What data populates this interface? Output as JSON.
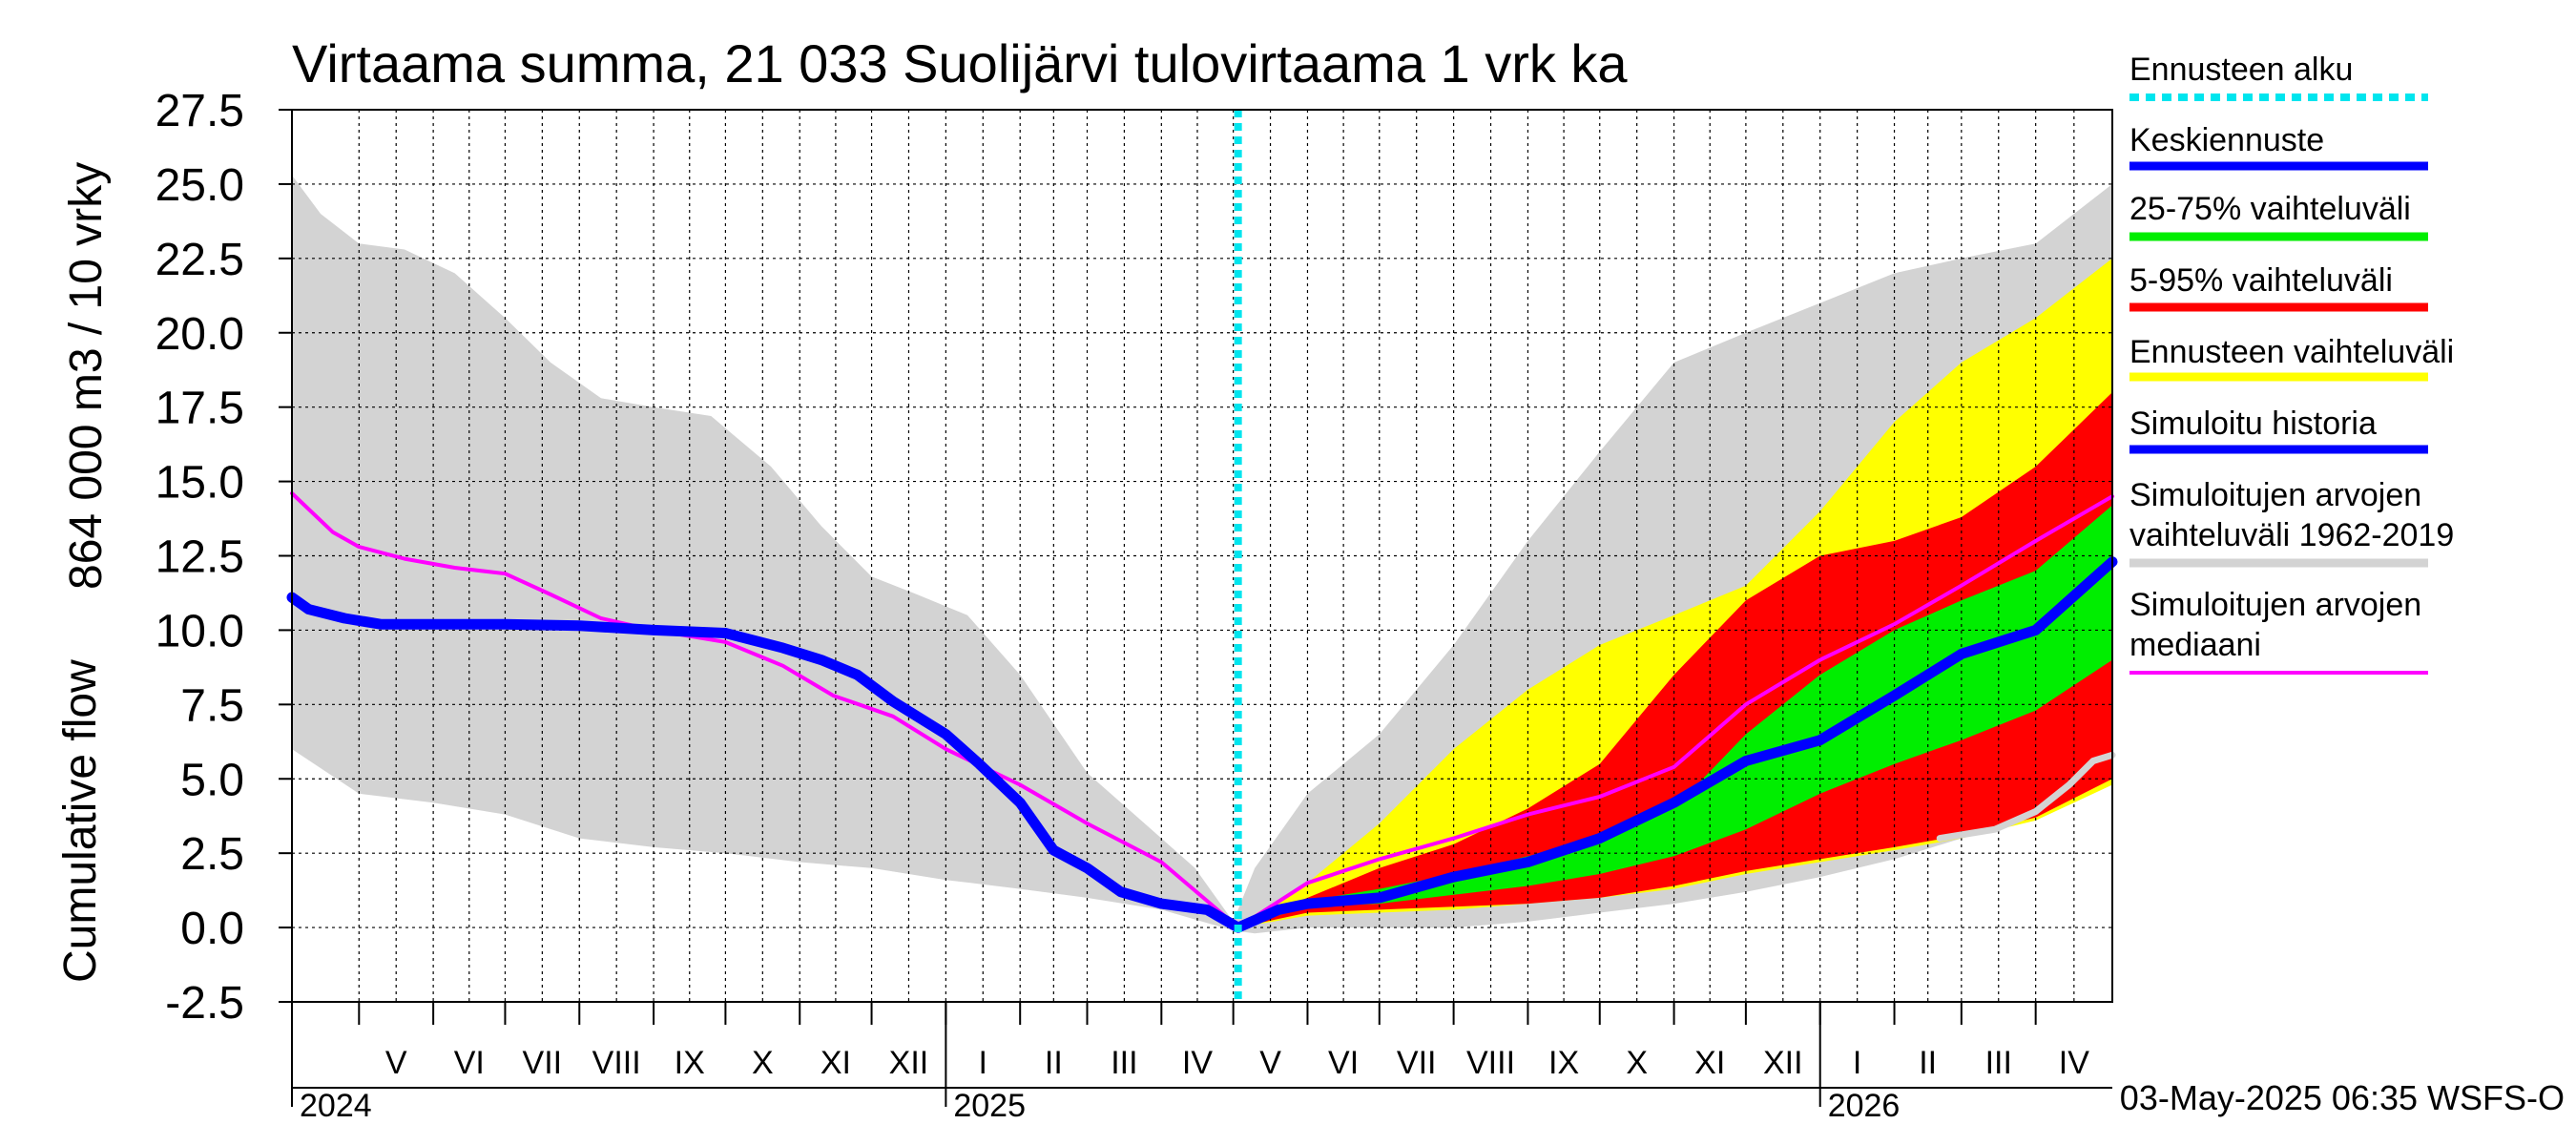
{
  "chart_data": {
    "type": "area",
    "title": "Virtaama summa, 21 033 Suolijärvi tulovirtaama 1 vrk ka",
    "ylabel_top": "864 000 m3 / 10 vrky",
    "ylabel_bottom": "Cumulative flow",
    "ylim": [
      -2.5,
      27.5
    ],
    "yticks": [
      "27.5",
      "25.0",
      "22.5",
      "20.0",
      "17.5",
      "15.0",
      "12.5",
      "10.0",
      "7.5",
      "5.0",
      "2.5",
      "0.0",
      "-2.5"
    ],
    "x_start": "2024-04-03",
    "x_end": "2026-05-03",
    "forecast_start": "2025-05-03",
    "grid": true,
    "legend_position": "right",
    "months": [
      {
        "label": "V",
        "date": "2024-05-01"
      },
      {
        "label": "VI",
        "date": "2024-06-01"
      },
      {
        "label": "VII",
        "date": "2024-07-01"
      },
      {
        "label": "VIII",
        "date": "2024-08-01"
      },
      {
        "label": "IX",
        "date": "2024-09-01"
      },
      {
        "label": "X",
        "date": "2024-10-01"
      },
      {
        "label": "XI",
        "date": "2024-11-01"
      },
      {
        "label": "XII",
        "date": "2024-12-01"
      },
      {
        "label": "I",
        "date": "2025-01-01"
      },
      {
        "label": "II",
        "date": "2025-02-01"
      },
      {
        "label": "III",
        "date": "2025-03-01"
      },
      {
        "label": "IV",
        "date": "2025-04-01"
      },
      {
        "label": "V",
        "date": "2025-05-01"
      },
      {
        "label": "VI",
        "date": "2025-06-01"
      },
      {
        "label": "VII",
        "date": "2025-07-01"
      },
      {
        "label": "VIII",
        "date": "2025-08-01"
      },
      {
        "label": "IX",
        "date": "2025-09-01"
      },
      {
        "label": "X",
        "date": "2025-10-01"
      },
      {
        "label": "XI",
        "date": "2025-11-01"
      },
      {
        "label": "XII",
        "date": "2025-12-01"
      },
      {
        "label": "I",
        "date": "2026-01-01"
      },
      {
        "label": "II",
        "date": "2026-02-01"
      },
      {
        "label": "III",
        "date": "2026-03-01"
      },
      {
        "label": "IV",
        "date": "2026-04-01"
      }
    ],
    "years": [
      {
        "label": "2024",
        "date": "2024-04-03"
      },
      {
        "label": "2025",
        "date": "2025-01-01"
      },
      {
        "label": "2026",
        "date": "2026-01-01"
      }
    ],
    "legend": [
      {
        "label": "Ennusteen alku",
        "color": "#00e5ee",
        "style": "dotted"
      },
      {
        "label": "Keskiennuste",
        "color": "#0000ff"
      },
      {
        "label": "25-75% vaihteluväli",
        "color": "#00ee00"
      },
      {
        "label": "5-95% vaihteluväli",
        "color": "#ff0000"
      },
      {
        "label": "Ennusteen vaihteluväli",
        "color": "#ffff00"
      },
      {
        "label": "Simuloitu historia",
        "color": "#0000ff"
      },
      {
        "label": "Simuloitujen arvojen",
        "label2": "vaihteluväli 1962-2019",
        "color": "#d3d3d3"
      },
      {
        "label": "Simuloitujen arvojen",
        "label2": "mediaani",
        "color": "#ff00ff"
      }
    ],
    "footer": "03-May-2025 06:35 WSFS-O",
    "series": {
      "hist_range_upper": [
        [
          "2024-04-03",
          25.3
        ],
        [
          "2024-04-15",
          24.0
        ],
        [
          "2024-05-01",
          23.0
        ],
        [
          "2024-05-20",
          22.8
        ],
        [
          "2024-06-10",
          22.0
        ],
        [
          "2024-07-01",
          20.5
        ],
        [
          "2024-07-20",
          19.0
        ],
        [
          "2024-08-10",
          17.8
        ],
        [
          "2024-09-01",
          17.5
        ],
        [
          "2024-09-25",
          17.2
        ],
        [
          "2024-10-20",
          15.5
        ],
        [
          "2024-11-10",
          13.5
        ],
        [
          "2024-12-01",
          11.8
        ],
        [
          "2024-12-20",
          11.2
        ],
        [
          "2025-01-10",
          10.5
        ],
        [
          "2025-02-01",
          8.5
        ],
        [
          "2025-03-01",
          5.2
        ],
        [
          "2025-03-25",
          3.5
        ],
        [
          "2025-04-15",
          2.0
        ],
        [
          "2025-05-01",
          0.2
        ],
        [
          "2025-05-10",
          2.0
        ],
        [
          "2025-06-01",
          4.5
        ],
        [
          "2025-07-01",
          6.5
        ],
        [
          "2025-08-01",
          9.5
        ],
        [
          "2025-09-01",
          13.0
        ],
        [
          "2025-10-01",
          16.0
        ],
        [
          "2025-11-01",
          19.0
        ],
        [
          "2025-12-01",
          20.0
        ],
        [
          "2026-01-01",
          21.0
        ],
        [
          "2026-02-01",
          22.0
        ],
        [
          "2026-03-01",
          22.5
        ],
        [
          "2026-04-01",
          23.0
        ],
        [
          "2026-05-03",
          25.0
        ]
      ],
      "hist_range_lower": [
        [
          "2024-04-03",
          6.0
        ],
        [
          "2024-05-01",
          4.5
        ],
        [
          "2024-06-01",
          4.2
        ],
        [
          "2024-07-01",
          3.8
        ],
        [
          "2024-08-01",
          3.0
        ],
        [
          "2024-09-01",
          2.7
        ],
        [
          "2024-10-01",
          2.5
        ],
        [
          "2024-11-01",
          2.2
        ],
        [
          "2024-12-01",
          2.0
        ],
        [
          "2025-01-01",
          1.6
        ],
        [
          "2025-02-01",
          1.3
        ],
        [
          "2025-03-01",
          1.0
        ],
        [
          "2025-04-01",
          0.6
        ],
        [
          "2025-05-01",
          -0.1
        ],
        [
          "2025-05-10",
          -0.2
        ],
        [
          "2025-06-01",
          0.0
        ],
        [
          "2025-07-01",
          0.0
        ],
        [
          "2025-08-01",
          0.0
        ],
        [
          "2025-09-01",
          0.2
        ],
        [
          "2025-10-01",
          0.5
        ],
        [
          "2025-11-01",
          0.8
        ],
        [
          "2025-12-01",
          1.2
        ],
        [
          "2026-01-01",
          1.7
        ],
        [
          "2026-02-01",
          2.3
        ],
        [
          "2026-03-01",
          3.0
        ],
        [
          "2026-04-01",
          4.0
        ],
        [
          "2026-05-03",
          5.0
        ]
      ],
      "fc_range_upper": [
        [
          "2025-05-03",
          0.1
        ],
        [
          "2025-06-01",
          1.5
        ],
        [
          "2025-07-01",
          3.5
        ],
        [
          "2025-08-01",
          6.0
        ],
        [
          "2025-09-01",
          8.0
        ],
        [
          "2025-10-01",
          9.5
        ],
        [
          "2025-11-01",
          10.5
        ],
        [
          "2025-12-01",
          11.5
        ],
        [
          "2026-01-01",
          14.0
        ],
        [
          "2026-02-01",
          17.0
        ],
        [
          "2026-03-01",
          19.0
        ],
        [
          "2026-04-01",
          20.5
        ],
        [
          "2026-05-03",
          22.5
        ]
      ],
      "fc_range_lower": [
        [
          "2025-05-03",
          0.0
        ],
        [
          "2025-06-01",
          0.4
        ],
        [
          "2025-07-01",
          0.5
        ],
        [
          "2025-08-01",
          0.6
        ],
        [
          "2025-09-01",
          0.8
        ],
        [
          "2025-10-01",
          1.0
        ],
        [
          "2025-11-01",
          1.3
        ],
        [
          "2025-12-01",
          1.8
        ],
        [
          "2026-01-01",
          2.2
        ],
        [
          "2026-02-01",
          2.6
        ],
        [
          "2026-03-01",
          3.0
        ],
        [
          "2026-04-01",
          3.6
        ],
        [
          "2026-05-03",
          4.8
        ]
      ],
      "p95": [
        [
          "2025-05-03",
          0.1
        ],
        [
          "2025-06-01",
          1.0
        ],
        [
          "2025-07-01",
          2.0
        ],
        [
          "2025-08-01",
          2.8
        ],
        [
          "2025-09-01",
          4.0
        ],
        [
          "2025-10-01",
          5.5
        ],
        [
          "2025-11-01",
          8.5
        ],
        [
          "2025-12-01",
          11.0
        ],
        [
          "2026-01-01",
          12.5
        ],
        [
          "2026-02-01",
          13.0
        ],
        [
          "2026-03-01",
          13.8
        ],
        [
          "2026-04-01",
          15.5
        ],
        [
          "2026-05-03",
          18.0
        ]
      ],
      "p05": [
        [
          "2025-05-03",
          0.0
        ],
        [
          "2025-06-01",
          0.5
        ],
        [
          "2025-07-01",
          0.6
        ],
        [
          "2025-08-01",
          0.7
        ],
        [
          "2025-09-01",
          0.8
        ],
        [
          "2025-10-01",
          1.0
        ],
        [
          "2025-11-01",
          1.4
        ],
        [
          "2025-12-01",
          1.9
        ],
        [
          "2026-01-01",
          2.3
        ],
        [
          "2026-02-01",
          2.7
        ],
        [
          "2026-03-01",
          3.1
        ],
        [
          "2026-04-01",
          3.7
        ],
        [
          "2026-05-03",
          5.0
        ]
      ],
      "p75": [
        [
          "2025-05-03",
          0.1
        ],
        [
          "2025-06-01",
          0.9
        ],
        [
          "2025-07-01",
          1.3
        ],
        [
          "2025-08-01",
          1.8
        ],
        [
          "2025-09-01",
          2.4
        ],
        [
          "2025-10-01",
          3.0
        ],
        [
          "2025-11-01",
          4.0
        ],
        [
          "2025-12-01",
          6.5
        ],
        [
          "2026-01-01",
          8.5
        ],
        [
          "2026-02-01",
          10.0
        ],
        [
          "2026-03-01",
          11.0
        ],
        [
          "2026-04-01",
          12.0
        ],
        [
          "2026-05-03",
          14.2
        ]
      ],
      "p25": [
        [
          "2025-05-03",
          0.0
        ],
        [
          "2025-06-01",
          0.7
        ],
        [
          "2025-07-01",
          0.8
        ],
        [
          "2025-08-01",
          1.1
        ],
        [
          "2025-09-01",
          1.4
        ],
        [
          "2025-10-01",
          1.8
        ],
        [
          "2025-11-01",
          2.4
        ],
        [
          "2025-12-01",
          3.3
        ],
        [
          "2026-01-01",
          4.5
        ],
        [
          "2026-02-01",
          5.5
        ],
        [
          "2026-03-01",
          6.3
        ],
        [
          "2026-04-01",
          7.3
        ],
        [
          "2026-05-03",
          9.0
        ]
      ],
      "history": [
        [
          "2024-04-03",
          11.1
        ],
        [
          "2024-04-10",
          10.7
        ],
        [
          "2024-04-25",
          10.4
        ],
        [
          "2024-05-10",
          10.2
        ],
        [
          "2024-06-01",
          10.2
        ],
        [
          "2024-07-01",
          10.2
        ],
        [
          "2024-08-01",
          10.15
        ],
        [
          "2024-09-01",
          10.0
        ],
        [
          "2024-10-01",
          9.9
        ],
        [
          "2024-10-25",
          9.4
        ],
        [
          "2024-11-10",
          9.0
        ],
        [
          "2024-11-25",
          8.5
        ],
        [
          "2024-12-10",
          7.6
        ],
        [
          "2025-01-01",
          6.5
        ],
        [
          "2025-01-15",
          5.5
        ],
        [
          "2025-02-01",
          4.2
        ],
        [
          "2025-02-15",
          2.6
        ],
        [
          "2025-03-01",
          2.0
        ],
        [
          "2025-03-15",
          1.2
        ],
        [
          "2025-04-01",
          0.8
        ],
        [
          "2025-04-20",
          0.6
        ],
        [
          "2025-05-03",
          0.0
        ]
      ],
      "median": [
        [
          "2024-04-03",
          14.6
        ],
        [
          "2024-04-20",
          13.3
        ],
        [
          "2024-05-01",
          12.8
        ],
        [
          "2024-05-20",
          12.4
        ],
        [
          "2024-06-10",
          12.1
        ],
        [
          "2024-07-01",
          11.9
        ],
        [
          "2024-07-20",
          11.2
        ],
        [
          "2024-08-10",
          10.4
        ],
        [
          "2024-09-01",
          10.0
        ],
        [
          "2024-10-01",
          9.6
        ],
        [
          "2024-10-25",
          8.8
        ],
        [
          "2024-11-15",
          7.8
        ],
        [
          "2024-12-10",
          7.1
        ],
        [
          "2025-01-01",
          6.0
        ],
        [
          "2025-02-01",
          4.8
        ],
        [
          "2025-03-01",
          3.5
        ],
        [
          "2025-04-01",
          2.2
        ],
        [
          "2025-04-20",
          0.9
        ],
        [
          "2025-05-03",
          0.0
        ],
        [
          "2025-06-01",
          1.5
        ],
        [
          "2025-07-01",
          2.3
        ],
        [
          "2025-08-01",
          3.0
        ],
        [
          "2025-09-01",
          3.8
        ],
        [
          "2025-10-01",
          4.4
        ],
        [
          "2025-11-01",
          5.4
        ],
        [
          "2025-12-01",
          7.5
        ],
        [
          "2026-01-01",
          9.0
        ],
        [
          "2026-02-01",
          10.2
        ],
        [
          "2026-03-01",
          11.5
        ],
        [
          "2026-04-01",
          13.0
        ],
        [
          "2026-05-03",
          14.5
        ]
      ],
      "forecast_mean": [
        [
          "2025-05-03",
          0.0
        ],
        [
          "2025-05-20",
          0.6
        ],
        [
          "2025-06-01",
          0.8
        ],
        [
          "2025-07-01",
          1.0
        ],
        [
          "2025-08-01",
          1.7
        ],
        [
          "2025-09-01",
          2.2
        ],
        [
          "2025-10-01",
          3.0
        ],
        [
          "2025-11-01",
          4.2
        ],
        [
          "2025-12-01",
          5.6
        ],
        [
          "2026-01-01",
          6.3
        ],
        [
          "2026-02-01",
          7.8
        ],
        [
          "2026-03-01",
          9.2
        ],
        [
          "2026-04-01",
          10.0
        ],
        [
          "2026-05-03",
          12.3
        ]
      ],
      "hist_lower_extra": [
        [
          "2026-02-20",
          3.0
        ],
        [
          "2026-03-15",
          3.3
        ],
        [
          "2026-04-01",
          3.9
        ],
        [
          "2026-04-15",
          4.8
        ],
        [
          "2026-04-25",
          5.6
        ],
        [
          "2026-05-03",
          5.8
        ]
      ]
    }
  }
}
